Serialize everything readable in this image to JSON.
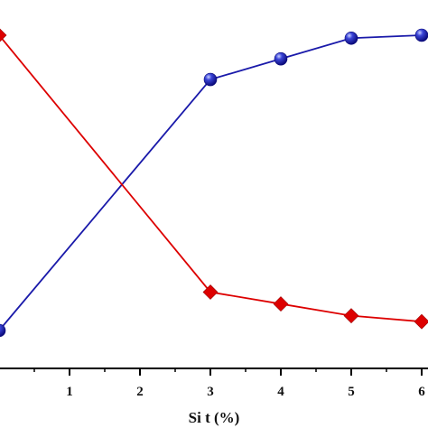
{
  "chart_data": {
    "type": "line",
    "xlabel": "Si t (%)",
    "x": [
      0,
      3,
      4,
      5,
      6
    ],
    "x_ticks": [
      1,
      2,
      3,
      4,
      5,
      6
    ],
    "xlim": [
      0,
      6.1
    ],
    "ylim": [
      0,
      1
    ],
    "series": [
      {
        "color": "#1a1aaa",
        "marker": "circle",
        "values": [
          0.0,
          0.85,
          0.92,
          0.99,
          1.0
        ]
      },
      {
        "color": "#dd0000",
        "marker": "diamond",
        "values": [
          1.0,
          0.13,
          0.09,
          0.05,
          0.03
        ]
      }
    ]
  }
}
